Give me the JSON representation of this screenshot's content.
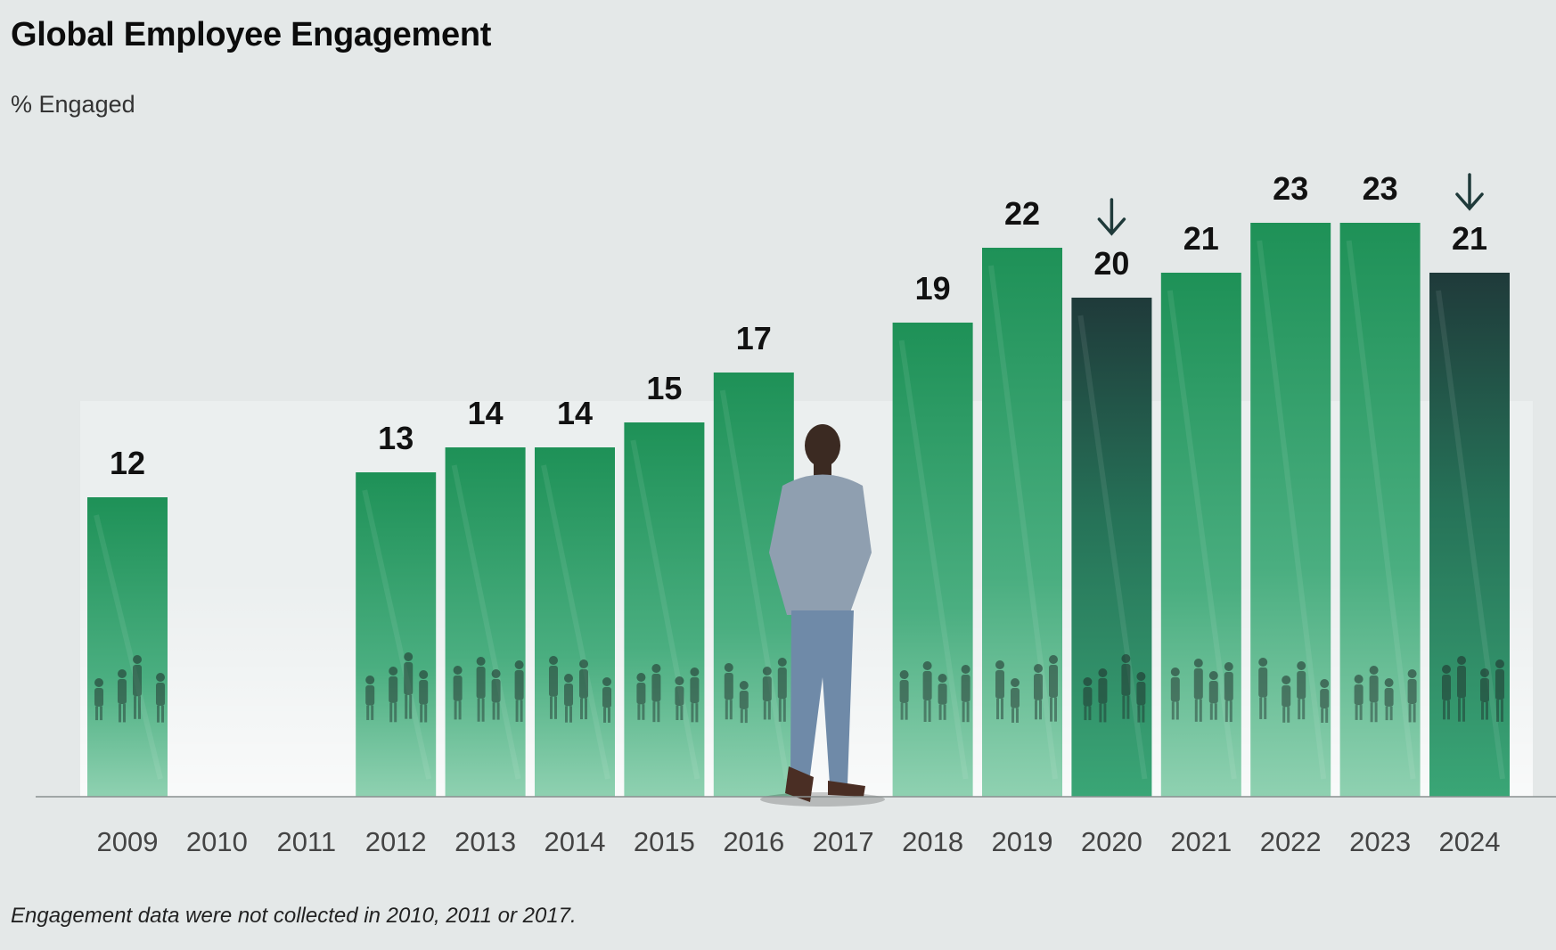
{
  "title": "Global Employee Engagement",
  "subtitle": "% Engaged",
  "footnote": "Engagement data were not collected in 2010, 2011 or 2017.",
  "colors": {
    "background": "#e4e8e8",
    "bar_green_top": "#1e9157",
    "bar_green_bottom": "#7fcaa6",
    "bar_dark_top": "#1f3a3a",
    "bar_dark_bottom": "#2f9a69",
    "arrow": "#1f3a3a"
  },
  "chart_data": {
    "type": "bar",
    "title": "Global Employee Engagement",
    "ylabel": "% Engaged",
    "xlabel": "",
    "categories": [
      "2009",
      "2010",
      "2011",
      "2012",
      "2013",
      "2014",
      "2015",
      "2016",
      "2017",
      "2018",
      "2019",
      "2020",
      "2021",
      "2022",
      "2023",
      "2024"
    ],
    "values": [
      12,
      null,
      null,
      13,
      14,
      14,
      15,
      17,
      null,
      19,
      22,
      20,
      21,
      23,
      23,
      21
    ],
    "data_labels": [
      "12",
      "",
      "",
      "13",
      "14",
      "14",
      "15",
      "17",
      "",
      "19",
      "22",
      "20",
      "21",
      "23",
      "23",
      "21"
    ],
    "decline_years": [
      "2020",
      "2024"
    ],
    "ylim": [
      0,
      25
    ],
    "grid": false,
    "legend": "none"
  }
}
